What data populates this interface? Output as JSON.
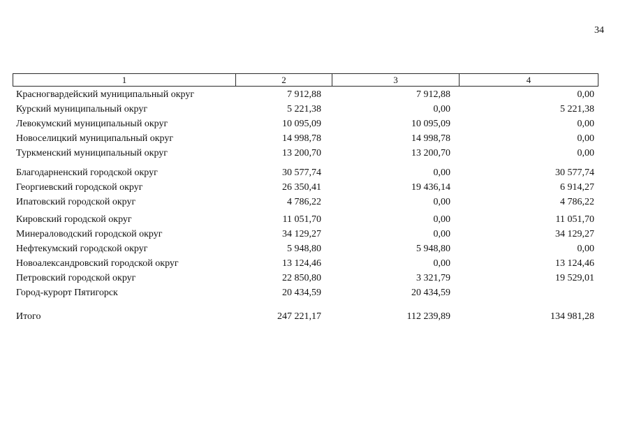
{
  "page_number": "34",
  "table": {
    "headers": [
      "1",
      "2",
      "3",
      "4"
    ],
    "rows": [
      {
        "gap": 0,
        "cells": [
          "Красногвардейский муниципальный округ",
          "7 912,88",
          "7 912,88",
          "0,00"
        ]
      },
      {
        "gap": 0,
        "cells": [
          "Курский муниципальный округ",
          "5 221,38",
          "0,00",
          "5 221,38"
        ]
      },
      {
        "gap": 0,
        "cells": [
          "Левокумский муниципальный округ",
          "10 095,09",
          "10 095,09",
          "0,00"
        ]
      },
      {
        "gap": 0,
        "cells": [
          "Новоселицкий муниципальный округ",
          "14 998,78",
          "14 998,78",
          "0,00"
        ]
      },
      {
        "gap": 0,
        "cells": [
          "Туркменский муниципальный округ",
          "13 200,70",
          "13 200,70",
          "0,00"
        ]
      },
      {
        "gap": 7,
        "cells": [
          "Благодарненский городской округ",
          "30 577,74",
          "0,00",
          "30 577,74"
        ]
      },
      {
        "gap": 0,
        "cells": [
          "Георгиевский городской округ",
          "26 350,41",
          "19 436,14",
          "6 914,27"
        ]
      },
      {
        "gap": 0,
        "cells": [
          "Ипатовский городской округ",
          "4 786,22",
          "0,00",
          "4 786,22"
        ]
      },
      {
        "gap": 4,
        "cells": [
          "Кировский городской округ",
          "11 051,70",
          "0,00",
          "11 051,70"
        ]
      },
      {
        "gap": 0,
        "cells": [
          "Минераловодский городской округ",
          "34 129,27",
          "0,00",
          "34 129,27"
        ]
      },
      {
        "gap": 0,
        "cells": [
          "Нефтекумский городской округ",
          "5 948,80",
          "5 948,80",
          "0,00"
        ]
      },
      {
        "gap": 0,
        "cells": [
          "Новоалександровский городской округ",
          "13 124,46",
          "0,00",
          "13 124,46"
        ]
      },
      {
        "gap": 0,
        "cells": [
          "Петровский городской округ",
          "22 850,80",
          "3 321,79",
          "19 529,01"
        ]
      },
      {
        "gap": 0,
        "cells": [
          "Город-курорт Пятигорск",
          "20 434,59",
          "20 434,59",
          ""
        ]
      },
      {
        "gap": 13,
        "cells": [
          "Итого",
          "247 221,17",
          "112 239,89",
          "134 981,28"
        ]
      }
    ]
  }
}
